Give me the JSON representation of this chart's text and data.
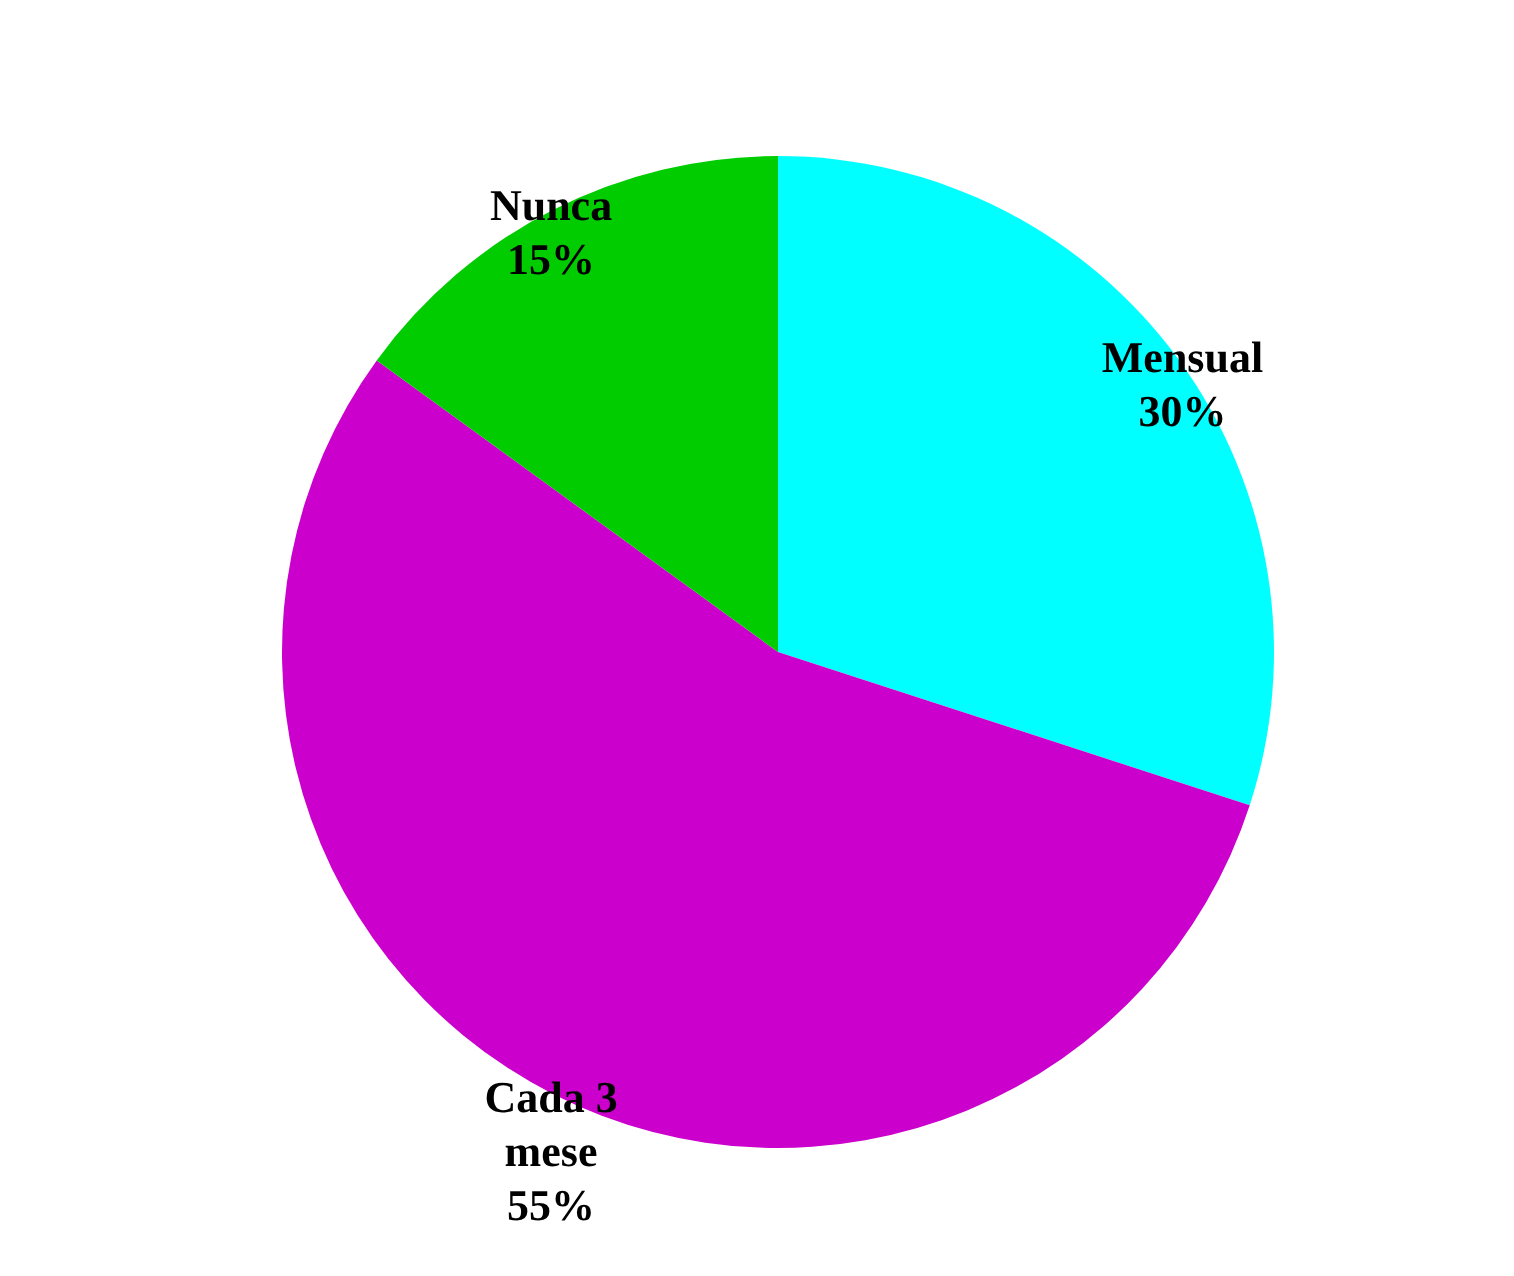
{
  "chart_data": {
    "type": "pie",
    "categories": [
      "Mensual",
      "Cada 3 mese",
      "Nunca"
    ],
    "values": [
      30,
      55,
      15
    ],
    "colors": [
      "#00ffff",
      "#cc00cc",
      "#00cc00"
    ],
    "value_labels": [
      "30%",
      "55%",
      "15%"
    ]
  }
}
